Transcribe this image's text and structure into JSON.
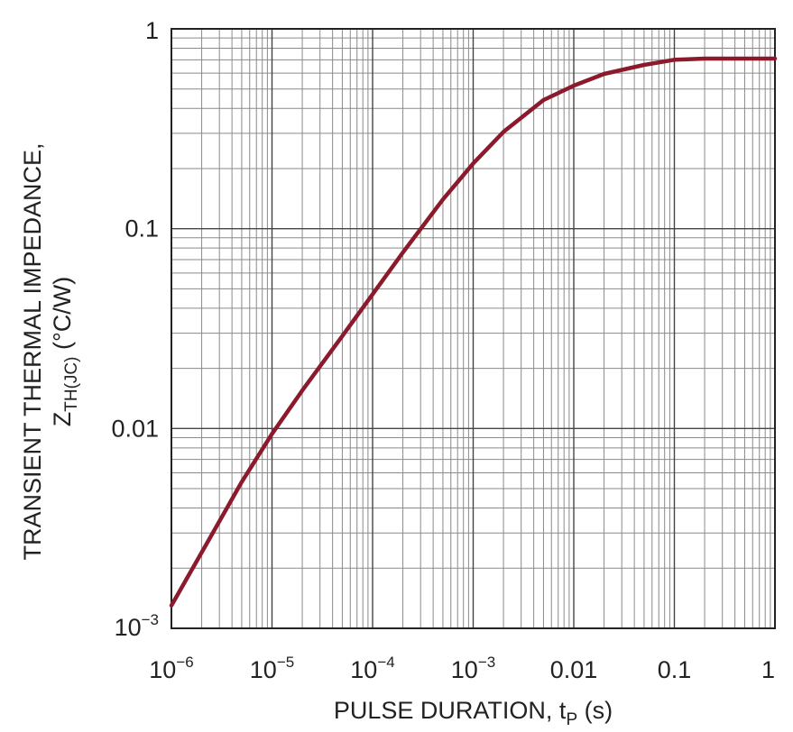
{
  "chart_data": {
    "type": "line",
    "x_scale": "log",
    "y_scale": "log",
    "xlim": [
      1e-06,
      1
    ],
    "ylim": [
      0.001,
      1
    ],
    "grid": true,
    "xlabel": {
      "main": "PULSE DURATION, t",
      "sub": "P",
      "tail": " (s)"
    },
    "ylabel": {
      "line1": "TRANSIENT THERMAL IMPEDANCE,",
      "line2_main": "Z",
      "line2_sub": "TH(JC)",
      "line2_tail": " (°C/W)"
    },
    "x_ticks": [
      {
        "value": 1e-06,
        "base": "10",
        "exp": "−6"
      },
      {
        "value": 1e-05,
        "base": "10",
        "exp": "−5"
      },
      {
        "value": 0.0001,
        "base": "10",
        "exp": "−4"
      },
      {
        "value": 0.001,
        "base": "10",
        "exp": "−3"
      },
      {
        "value": 0.01,
        "label": "0.01"
      },
      {
        "value": 0.1,
        "label": "0.1"
      },
      {
        "value": 1,
        "label": "1"
      }
    ],
    "y_ticks": [
      {
        "value": 0.001,
        "base": "10",
        "exp": "−3"
      },
      {
        "value": 0.01,
        "label": "0.01"
      },
      {
        "value": 0.1,
        "label": "0.1"
      },
      {
        "value": 1,
        "label": "1"
      }
    ],
    "series": [
      {
        "color": "#8b1a2c",
        "x": [
          1e-06,
          2e-06,
          5e-06,
          1e-05,
          2e-05,
          5e-05,
          0.0001,
          0.0002,
          0.0005,
          0.001,
          0.002,
          0.005,
          0.01,
          0.02,
          0.05,
          0.1,
          0.2,
          0.5,
          1
        ],
        "y": [
          0.0013,
          0.0024,
          0.0054,
          0.0094,
          0.0155,
          0.029,
          0.047,
          0.076,
          0.14,
          0.212,
          0.305,
          0.44,
          0.52,
          0.595,
          0.66,
          0.7,
          0.71,
          0.71,
          0.71
        ]
      }
    ]
  }
}
